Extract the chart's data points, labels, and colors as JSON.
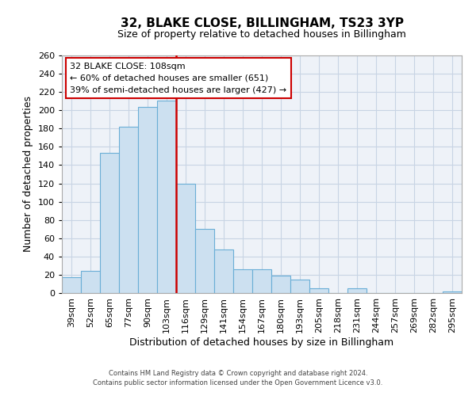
{
  "title": "32, BLAKE CLOSE, BILLINGHAM, TS23 3YP",
  "subtitle": "Size of property relative to detached houses in Billingham",
  "xlabel": "Distribution of detached houses by size in Billingham",
  "ylabel": "Number of detached properties",
  "categories": [
    "39sqm",
    "52sqm",
    "65sqm",
    "77sqm",
    "90sqm",
    "103sqm",
    "116sqm",
    "129sqm",
    "141sqm",
    "154sqm",
    "167sqm",
    "180sqm",
    "193sqm",
    "205sqm",
    "218sqm",
    "231sqm",
    "244sqm",
    "257sqm",
    "269sqm",
    "282sqm",
    "295sqm"
  ],
  "values": [
    17,
    24,
    153,
    182,
    204,
    211,
    120,
    70,
    48,
    26,
    26,
    19,
    15,
    5,
    0,
    5,
    0,
    0,
    0,
    0,
    2
  ],
  "bar_color": "#cce0f0",
  "bar_edge_color": "#6aaed6",
  "highlight_line_color": "#cc0000",
  "ylim": [
    0,
    260
  ],
  "yticks": [
    0,
    20,
    40,
    60,
    80,
    100,
    120,
    140,
    160,
    180,
    200,
    220,
    240,
    260
  ],
  "annotation_title": "32 BLAKE CLOSE: 108sqm",
  "annotation_line1": "← 60% of detached houses are smaller (651)",
  "annotation_line2": "39% of semi-detached houses are larger (427) →",
  "annotation_box_color": "#ffffff",
  "annotation_box_edge_color": "#cc0000",
  "footer1": "Contains HM Land Registry data © Crown copyright and database right 2024.",
  "footer2": "Contains public sector information licensed under the Open Government Licence v3.0.",
  "background_color": "#ffffff",
  "plot_bg_color": "#eef2f8",
  "grid_color": "#c8d4e4",
  "title_fontsize": 11,
  "subtitle_fontsize": 9,
  "xlabel_fontsize": 9,
  "ylabel_fontsize": 9,
  "tick_fontsize": 8,
  "annotation_fontsize": 8,
  "footer_fontsize": 6
}
